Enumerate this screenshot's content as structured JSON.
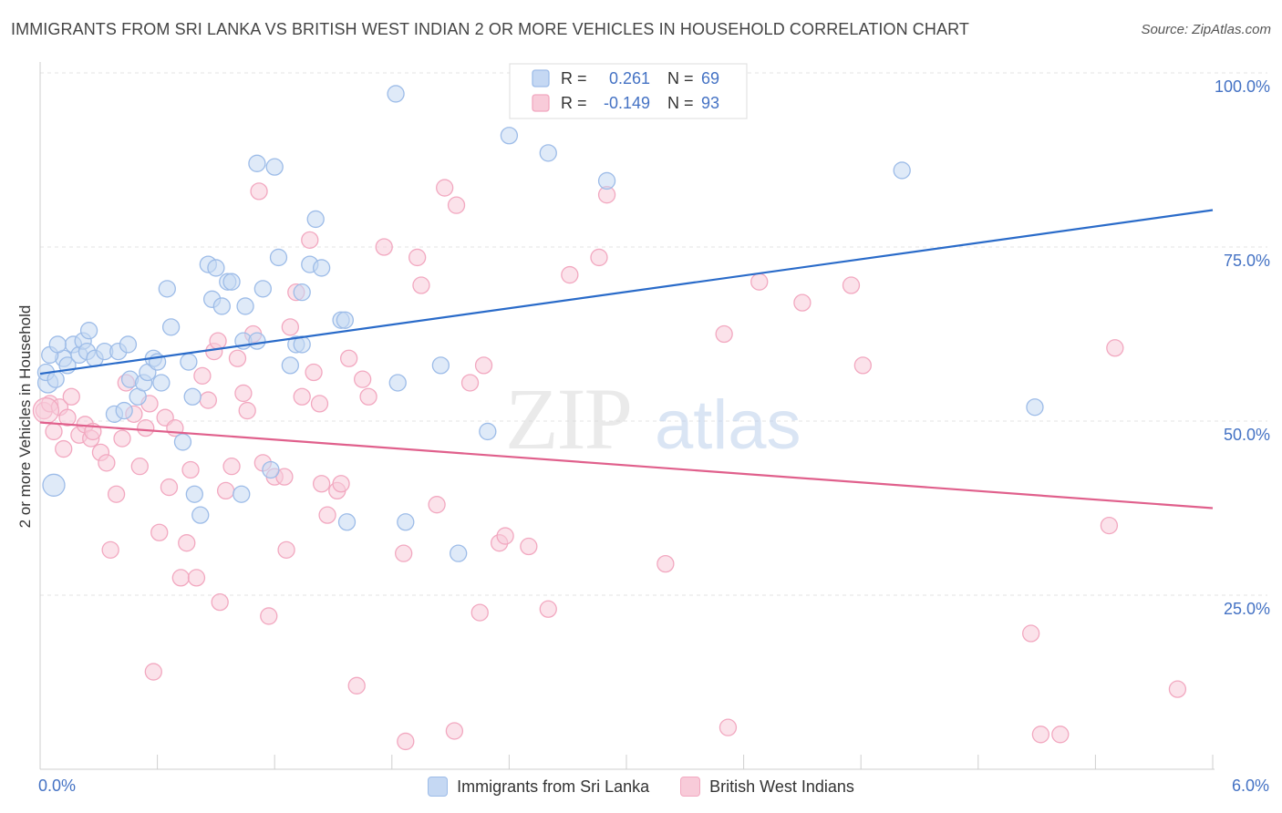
{
  "title": "IMMIGRANTS FROM SRI LANKA VS BRITISH WEST INDIAN 2 OR MORE VEHICLES IN HOUSEHOLD CORRELATION CHART",
  "source": "Source: ZipAtlas.com",
  "watermark": {
    "zip": "ZIP",
    "atlas": "atlas"
  },
  "legend_top": [
    {
      "r_label": "R =",
      "r_value": "0.261",
      "n_label": "N =",
      "n_value": "69"
    },
    {
      "r_label": "R =",
      "r_value": "-0.149",
      "n_label": "N =",
      "n_value": "93"
    }
  ],
  "chart_data": {
    "type": "scatter",
    "ylabel": "2 or more Vehicles in Household",
    "xlim": [
      0,
      6
    ],
    "ylim": [
      0,
      100
    ],
    "x_tick_labels": {
      "min": "0.0%",
      "max": "6.0%"
    },
    "y_tick_labels": [
      {
        "value": 100,
        "label": "100.0%"
      },
      {
        "value": 75,
        "label": "75.0%"
      },
      {
        "value": 50,
        "label": "50.0%"
      },
      {
        "value": 25,
        "label": "25.0%"
      }
    ],
    "grid": "horizontal dashed",
    "series": [
      {
        "name": "Immigrants from Sri Lanka",
        "color": "#9dbce8",
        "fill": "#c5d8f3",
        "trend_color": "#2a6bc9",
        "trend": {
          "x": [
            0,
            6
          ],
          "y": [
            56.8,
            80.3
          ]
        },
        "points": [
          [
            0.04,
            55.5
          ],
          [
            0.07,
            40.8
          ],
          [
            0.12,
            59.0
          ],
          [
            0.14,
            58.0
          ],
          [
            0.17,
            61.0
          ],
          [
            0.2,
            59.5
          ],
          [
            0.22,
            61.5
          ],
          [
            0.24,
            60.0
          ],
          [
            0.25,
            63.0
          ],
          [
            0.28,
            59.0
          ],
          [
            0.33,
            60.0
          ],
          [
            0.4,
            60.0
          ],
          [
            0.45,
            61.0
          ],
          [
            0.38,
            51.0
          ],
          [
            0.43,
            51.5
          ],
          [
            0.46,
            56.0
          ],
          [
            0.5,
            53.5
          ],
          [
            0.53,
            55.5
          ],
          [
            0.55,
            57.0
          ],
          [
            0.58,
            59.0
          ],
          [
            0.6,
            58.5
          ],
          [
            0.62,
            55.5
          ],
          [
            0.65,
            69.0
          ],
          [
            0.67,
            63.5
          ],
          [
            0.73,
            47.0
          ],
          [
            0.76,
            58.5
          ],
          [
            0.78,
            53.5
          ],
          [
            0.79,
            39.5
          ],
          [
            0.82,
            36.5
          ],
          [
            0.86,
            72.5
          ],
          [
            0.88,
            67.5
          ],
          [
            0.9,
            72.0
          ],
          [
            0.93,
            66.5
          ],
          [
            0.96,
            70.0
          ],
          [
            0.98,
            70.0
          ],
          [
            1.03,
            39.5
          ],
          [
            1.04,
            61.5
          ],
          [
            1.05,
            66.5
          ],
          [
            1.11,
            61.5
          ],
          [
            1.11,
            87.0
          ],
          [
            1.14,
            69.0
          ],
          [
            1.18,
            43.0
          ],
          [
            1.2,
            86.5
          ],
          [
            1.22,
            73.5
          ],
          [
            1.28,
            58.0
          ],
          [
            1.31,
            61.0
          ],
          [
            1.34,
            61.0
          ],
          [
            1.34,
            68.5
          ],
          [
            1.38,
            72.5
          ],
          [
            1.41,
            79.0
          ],
          [
            1.44,
            72.0
          ],
          [
            1.54,
            64.5
          ],
          [
            1.56,
            64.5
          ],
          [
            1.57,
            35.5
          ],
          [
            1.82,
            97.0
          ],
          [
            1.83,
            55.5
          ],
          [
            1.87,
            35.5
          ],
          [
            2.05,
            58.0
          ],
          [
            2.14,
            31.0
          ],
          [
            2.29,
            48.5
          ],
          [
            2.4,
            91.0
          ],
          [
            2.6,
            88.5
          ],
          [
            2.9,
            84.5
          ],
          [
            4.41,
            86.0
          ],
          [
            5.09,
            52.0
          ],
          [
            0.03,
            57.0
          ],
          [
            0.08,
            56.0
          ],
          [
            0.05,
            59.5
          ],
          [
            0.09,
            61.0
          ]
        ]
      },
      {
        "name": "British West Indians",
        "color": "#f2a8c0",
        "fill": "#f8cbd9",
        "trend_color": "#e0608c",
        "trend": {
          "x": [
            0,
            6
          ],
          "y": [
            49.8,
            37.5
          ]
        },
        "points": [
          [
            0.02,
            51.5
          ],
          [
            0.05,
            52.5
          ],
          [
            0.07,
            48.5
          ],
          [
            0.1,
            52.0
          ],
          [
            0.14,
            50.5
          ],
          [
            0.16,
            53.5
          ],
          [
            0.2,
            48.0
          ],
          [
            0.23,
            49.5
          ],
          [
            0.26,
            47.5
          ],
          [
            0.27,
            48.5
          ],
          [
            0.31,
            45.5
          ],
          [
            0.34,
            44.0
          ],
          [
            0.36,
            31.5
          ],
          [
            0.39,
            39.5
          ],
          [
            0.42,
            47.5
          ],
          [
            0.44,
            55.5
          ],
          [
            0.48,
            51.0
          ],
          [
            0.51,
            43.5
          ],
          [
            0.54,
            49.0
          ],
          [
            0.56,
            52.5
          ],
          [
            0.58,
            14.0
          ],
          [
            0.61,
            34.0
          ],
          [
            0.64,
            50.5
          ],
          [
            0.66,
            40.5
          ],
          [
            0.69,
            49.0
          ],
          [
            0.72,
            27.5
          ],
          [
            0.75,
            32.5
          ],
          [
            0.77,
            43.0
          ],
          [
            0.8,
            27.5
          ],
          [
            0.83,
            56.5
          ],
          [
            0.86,
            53.0
          ],
          [
            0.89,
            60.0
          ],
          [
            0.91,
            61.5
          ],
          [
            0.92,
            24.0
          ],
          [
            0.95,
            40.0
          ],
          [
            0.98,
            43.5
          ],
          [
            1.01,
            59.0
          ],
          [
            1.04,
            54.0
          ],
          [
            1.06,
            51.5
          ],
          [
            1.09,
            62.5
          ],
          [
            1.12,
            83.0
          ],
          [
            1.14,
            44.0
          ],
          [
            1.17,
            22.0
          ],
          [
            1.2,
            42.0
          ],
          [
            1.25,
            42.0
          ],
          [
            1.26,
            31.5
          ],
          [
            1.28,
            63.5
          ],
          [
            1.31,
            68.5
          ],
          [
            1.34,
            53.5
          ],
          [
            1.38,
            76.0
          ],
          [
            1.4,
            57.0
          ],
          [
            1.43,
            52.5
          ],
          [
            1.44,
            41.0
          ],
          [
            1.47,
            36.5
          ],
          [
            1.52,
            40.0
          ],
          [
            1.54,
            41.0
          ],
          [
            1.58,
            59.0
          ],
          [
            1.62,
            12.0
          ],
          [
            1.65,
            56.0
          ],
          [
            1.68,
            53.5
          ],
          [
            1.76,
            75.0
          ],
          [
            1.86,
            31.0
          ],
          [
            1.87,
            4.0
          ],
          [
            1.93,
            73.5
          ],
          [
            1.95,
            69.5
          ],
          [
            2.03,
            38.0
          ],
          [
            2.07,
            83.5
          ],
          [
            2.12,
            5.5
          ],
          [
            2.13,
            81.0
          ],
          [
            2.2,
            55.5
          ],
          [
            2.25,
            22.5
          ],
          [
            2.27,
            58.0
          ],
          [
            2.35,
            32.5
          ],
          [
            2.38,
            33.5
          ],
          [
            2.5,
            32.0
          ],
          [
            2.6,
            23.0
          ],
          [
            2.71,
            71.0
          ],
          [
            2.86,
            73.5
          ],
          [
            2.9,
            82.5
          ],
          [
            3.2,
            29.5
          ],
          [
            3.5,
            62.5
          ],
          [
            3.52,
            6.0
          ],
          [
            3.68,
            70.0
          ],
          [
            3.9,
            67.0
          ],
          [
            4.15,
            69.5
          ],
          [
            4.21,
            58.0
          ],
          [
            5.07,
            19.5
          ],
          [
            5.12,
            5.0
          ],
          [
            5.22,
            5.0
          ],
          [
            5.47,
            35.0
          ],
          [
            5.5,
            60.5
          ],
          [
            5.82,
            11.5
          ],
          [
            0.12,
            46.0
          ]
        ]
      }
    ]
  }
}
